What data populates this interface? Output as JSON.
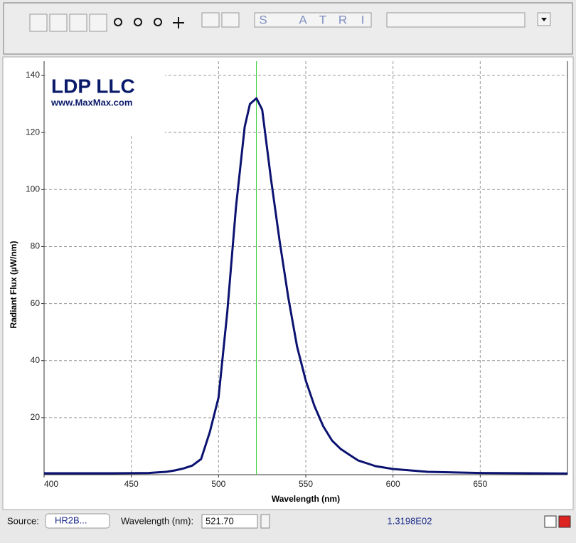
{
  "toolbar": {
    "letters": [
      "S",
      "A",
      "T",
      "R",
      "I"
    ]
  },
  "logo": {
    "title": "LDP LLC",
    "url": "www.MaxMax.com"
  },
  "chart_data": {
    "type": "line",
    "x_label": "Wavelength (nm)",
    "y_label": "Radiant Flux (µW/nm)",
    "x": [
      400,
      420,
      440,
      460,
      465,
      470,
      475,
      480,
      485,
      490,
      495,
      500,
      505,
      510,
      515,
      518,
      521.7,
      525,
      530,
      535,
      540,
      545,
      550,
      555,
      560,
      565,
      570,
      575,
      580,
      585,
      590,
      600,
      620,
      650,
      700
    ],
    "values": [
      0.5,
      0.5,
      0.5,
      0.6,
      0.8,
      1.0,
      1.5,
      2.2,
      3.2,
      5.5,
      15,
      27,
      57,
      94,
      122,
      130,
      132,
      128,
      104,
      82,
      62,
      45,
      33,
      24,
      17,
      12,
      9,
      7,
      5,
      4,
      3,
      2,
      1,
      0.6,
      0.4
    ],
    "color": "#0b1270",
    "cursor": 521.7,
    "cursor_color": "#33cc33",
    "xlim": [
      400,
      700
    ],
    "ylim": [
      0,
      145
    ],
    "xticks": [
      400,
      450,
      500,
      550,
      600,
      650
    ],
    "yticks": [
      20,
      40,
      60,
      80,
      100,
      120,
      140
    ],
    "grid": true
  },
  "statusbar": {
    "source_label": "Source:",
    "source_value": "HR2B...",
    "wavelength_label": "Wavelength (nm):",
    "wavelength_value": "521.70",
    "flux_value": "1.3198E02"
  }
}
